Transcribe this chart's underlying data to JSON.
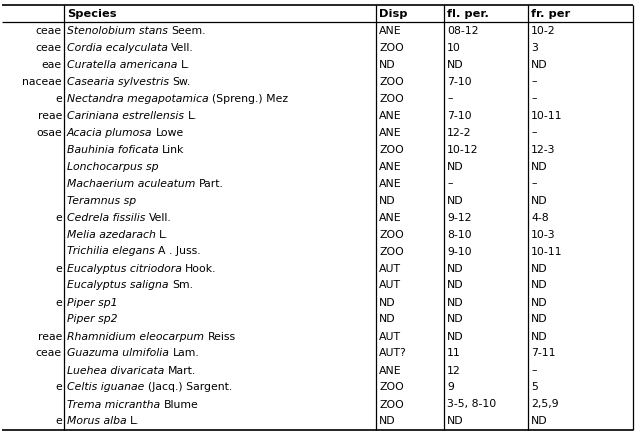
{
  "col0_header": "",
  "col1_header": "Species",
  "col2_header": "Disp",
  "col3_header": "fl. per.",
  "col4_header": "fr. per",
  "rows": [
    [
      "ceae",
      "Stenolobium stans",
      "Seem.",
      "ANE",
      "08-12",
      "10-2"
    ],
    [
      "ceae",
      "Cordia ecalyculata",
      "Vell.",
      "ZOO",
      "10",
      "3"
    ],
    [
      "eae",
      "Curatella americana",
      "L.",
      "ND",
      "ND",
      "ND"
    ],
    [
      "naceae",
      "Casearia sylvestris",
      "Sw.",
      "ZOO",
      "7-10",
      "–"
    ],
    [
      "e",
      "Nectandra megapotamica",
      "(Spreng.) Mez",
      "ZOO",
      "–",
      "–"
    ],
    [
      "reae",
      "Cariniana estrellensis",
      "L.",
      "ANE",
      "7-10",
      "10-11"
    ],
    [
      "osae",
      "Acacia plumosa",
      "Lowe",
      "ANE",
      "12-2",
      "–"
    ],
    [
      "",
      "Bauhinia foficata",
      "Link",
      "ZOO",
      "10-12",
      "12-3"
    ],
    [
      "",
      "Lonchocarpus sp",
      "",
      "ANE",
      "ND",
      "ND"
    ],
    [
      "",
      "Machaerium aculeatum",
      "Part.",
      "ANE",
      "–",
      "–"
    ],
    [
      "",
      "Teramnus sp",
      "",
      "ND",
      "ND",
      "ND"
    ],
    [
      "e",
      "Cedrela fissilis",
      "Vell.",
      "ANE",
      "9-12",
      "4-8"
    ],
    [
      "",
      "Melia azedarach",
      "L.",
      "ZOO",
      "8-10",
      "10-3"
    ],
    [
      "",
      "Trichilia elegans",
      "A . Juss.",
      "ZOO",
      "9-10",
      "10-11"
    ],
    [
      "e",
      "Eucalyptus citriodora",
      "Hook.",
      "AUT",
      "ND",
      "ND"
    ],
    [
      "",
      "Eucalyptus saligna",
      "Sm.",
      "AUT",
      "ND",
      "ND"
    ],
    [
      "e",
      "Piper sp1",
      "",
      "ND",
      "ND",
      "ND"
    ],
    [
      "",
      "Piper sp2",
      "",
      "ND",
      "ND",
      "ND"
    ],
    [
      "reae",
      "Rhamnidium eleocarpum",
      "Reiss",
      "AUT",
      "ND",
      "ND"
    ],
    [
      "ceae",
      "Guazuma ulmifolia",
      "Lam.",
      "AUT?",
      "11",
      "7-11"
    ],
    [
      "",
      "Luehea divaricata",
      "Mart.",
      "ANE",
      "12",
      "–"
    ],
    [
      "e",
      "Celtis iguanae",
      "(Jacq.) Sargent.",
      "ZOO",
      "9",
      "5"
    ],
    [
      "",
      "Trema micrantha",
      "Blume",
      "ZOO",
      "3-5, 8-10",
      "2,5,9"
    ],
    [
      "e",
      "Morus alba",
      "L.",
      "ND",
      "ND",
      "ND"
    ]
  ],
  "bg_color": "#ffffff",
  "text_color": "#000000",
  "header_color": "#000000",
  "line_color": "#000000",
  "font_size": 7.8,
  "header_font_size": 8.2
}
